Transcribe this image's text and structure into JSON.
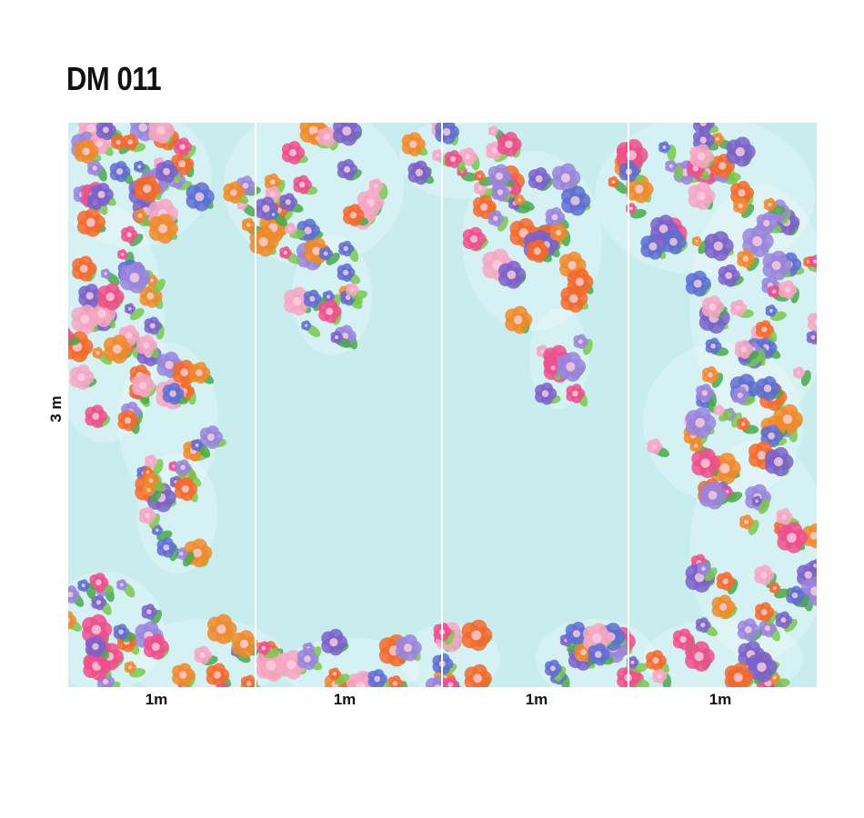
{
  "design": {
    "code": "DM 011",
    "height_label": "3 m",
    "panel_width_labels": [
      "1m",
      "1m",
      "1m",
      "1m"
    ],
    "background_color": "#c9ecef",
    "flower_colors": [
      "#ef4f8c",
      "#f7a7c4",
      "#f08a2a",
      "#f46a2c",
      "#7a62c9",
      "#9a85dd",
      "#5e6fd1",
      "#7ac84c",
      "#4aa84a",
      "#fbd0e0"
    ]
  }
}
